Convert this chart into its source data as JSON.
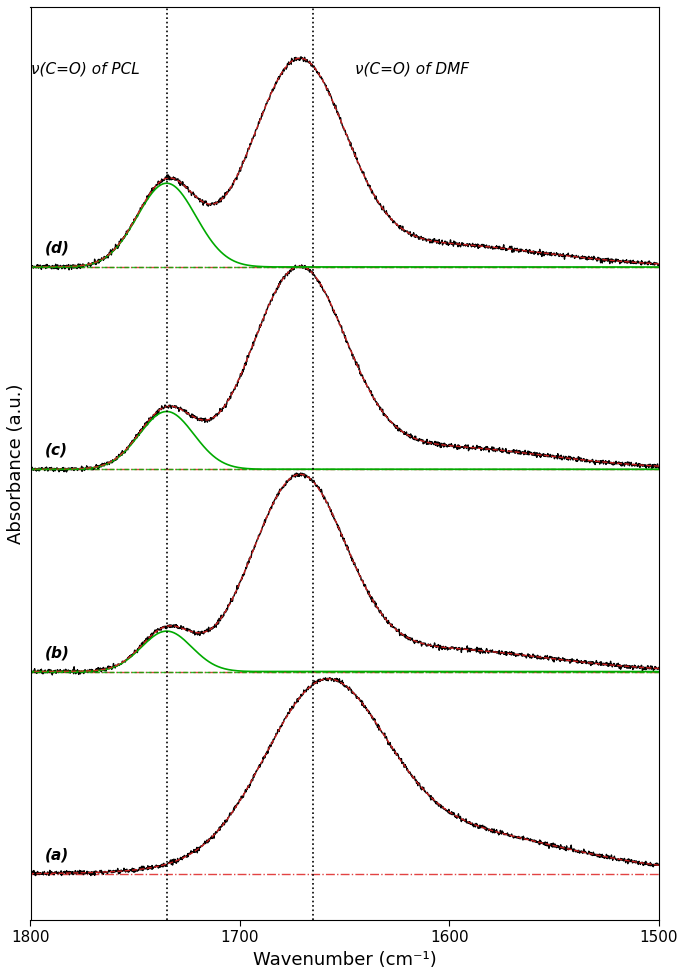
{
  "xlim": [
    1800,
    1500
  ],
  "xlabel": "Wavenumber (cm⁻¹)",
  "ylabel": "Absorbance (a.u.)",
  "vline1": 1735,
  "vline2": 1665,
  "annotation_pcl": "ν(C=O) of PCL",
  "annotation_dmf": "ν(C=O) of DMF",
  "panel_labels": [
    "(a)",
    "(b)",
    "(c)",
    "(d)"
  ],
  "offsets": [
    0.0,
    0.35,
    0.7,
    1.05
  ],
  "baseline_color": "#dd2222",
  "fit_color": "#dd2222",
  "pcl_peak_color": "#00aa00",
  "spectrum_color": "#000000",
  "background_color": "#ffffff"
}
